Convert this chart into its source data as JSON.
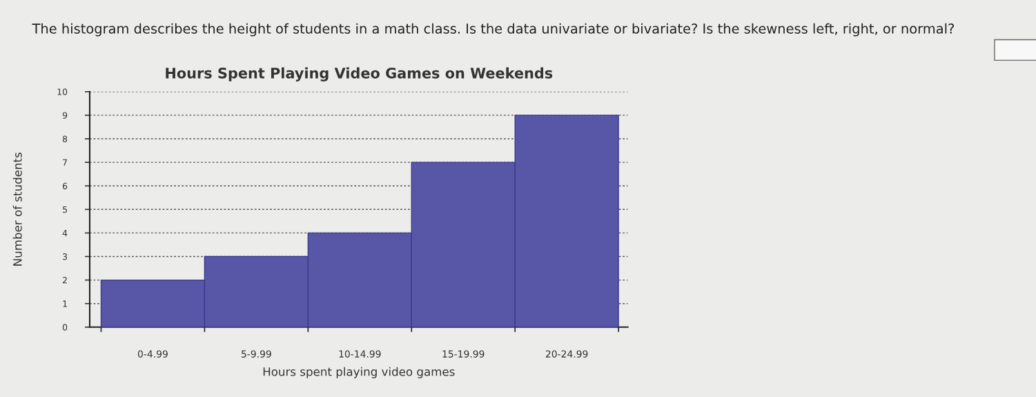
{
  "chart_data": {
    "type": "bar",
    "title": "Hours Spent Playing Video Games on Weekends",
    "xlabel": "Hours spent playing video games",
    "ylabel": "Number of students",
    "annotations": [
      "The histogram describes the height of students in a math class. Is the data univariate or bivariate? Is the skewness left, right, or normal?"
    ],
    "categories": [
      "0-4.99",
      "5-9.99",
      "10-14.99",
      "15-19.99",
      "20-24.99"
    ],
    "values": [
      2,
      3,
      4,
      7,
      9
    ],
    "color": "#5856a6",
    "ylim": [
      0,
      10
    ],
    "yticks": [
      0,
      1,
      2,
      3,
      4,
      5,
      6,
      7,
      8,
      9,
      10
    ],
    "grid": "y"
  }
}
